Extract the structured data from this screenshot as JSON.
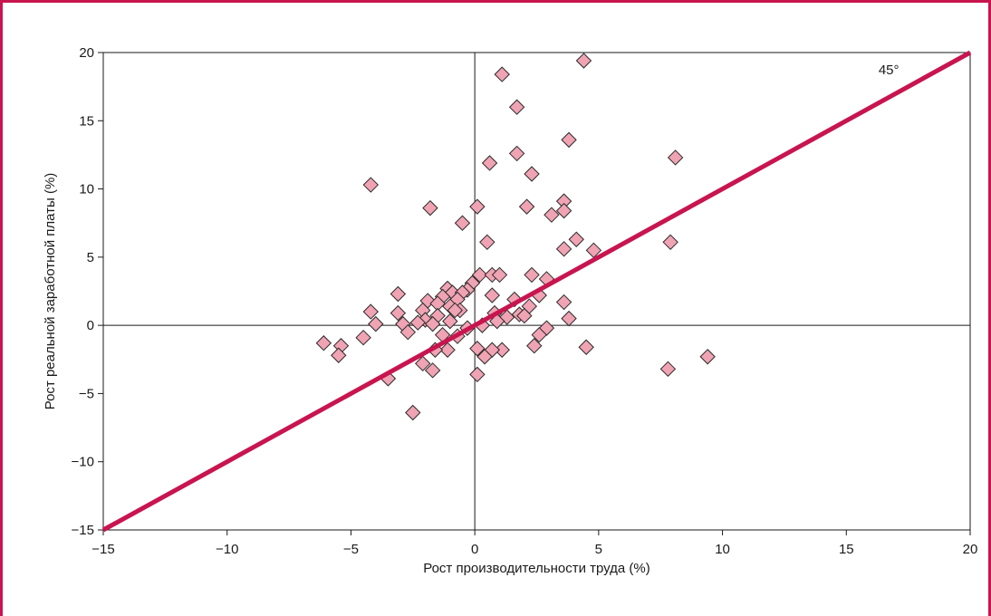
{
  "chart_data": {
    "type": "scatter",
    "xlabel": "Рост производительности труда (%)",
    "ylabel": "Рост реальной заработной платы (%)",
    "xlim": [
      -15,
      20
    ],
    "ylim": [
      -15,
      20
    ],
    "x_ticks": [
      -15,
      -10,
      -5,
      0,
      5,
      10,
      15,
      20
    ],
    "y_ticks": [
      -15,
      -10,
      -5,
      0,
      5,
      10,
      15,
      20
    ],
    "x_tick_labels": [
      "−15",
      "−10",
      "−5",
      "0",
      "5",
      "10",
      "15",
      "20"
    ],
    "y_tick_labels": [
      "−15",
      "−10",
      "−5",
      "0",
      "5",
      "10",
      "15",
      "20"
    ],
    "grid": false,
    "reference_lines": {
      "x": 0,
      "y": 0
    },
    "fit_line": {
      "from": [
        -15,
        -15
      ],
      "to": [
        20,
        20
      ],
      "color": "#c8154f",
      "label": "45°"
    },
    "marker": {
      "shape": "diamond",
      "fill": "#f0a3b3",
      "stroke": "#2a2a2a"
    },
    "frame_color": "#c8154f",
    "series": [
      {
        "points": [
          [
            4.4,
            19.4
          ],
          [
            1.1,
            18.4
          ],
          [
            1.7,
            16.0
          ],
          [
            3.8,
            13.6
          ],
          [
            1.7,
            12.6
          ],
          [
            0.6,
            11.9
          ],
          [
            8.1,
            12.3
          ],
          [
            2.3,
            11.1
          ],
          [
            -4.2,
            10.3
          ],
          [
            3.6,
            9.1
          ],
          [
            -1.8,
            8.6
          ],
          [
            0.1,
            8.7
          ],
          [
            2.1,
            8.7
          ],
          [
            3.6,
            8.4
          ],
          [
            3.1,
            8.1
          ],
          [
            -0.5,
            7.5
          ],
          [
            4.1,
            6.3
          ],
          [
            0.5,
            6.1
          ],
          [
            7.9,
            6.1
          ],
          [
            3.6,
            5.6
          ],
          [
            4.8,
            5.5
          ],
          [
            0.2,
            3.7
          ],
          [
            0.7,
            3.7
          ],
          [
            1.0,
            3.7
          ],
          [
            2.3,
            3.7
          ],
          [
            2.9,
            3.4
          ],
          [
            -0.1,
            3.1
          ],
          [
            -1.1,
            2.7
          ],
          [
            -0.3,
            2.6
          ],
          [
            -0.9,
            2.4
          ],
          [
            -0.5,
            2.4
          ],
          [
            -3.1,
            2.3
          ],
          [
            0.7,
            2.2
          ],
          [
            2.6,
            2.2
          ],
          [
            -1.3,
            2.1
          ],
          [
            -0.7,
            1.9
          ],
          [
            1.6,
            1.9
          ],
          [
            -1.9,
            1.8
          ],
          [
            3.6,
            1.7
          ],
          [
            -1.5,
            1.6
          ],
          [
            -1.0,
            1.4
          ],
          [
            2.2,
            1.4
          ],
          [
            -2.1,
            1.1
          ],
          [
            -0.6,
            1.1
          ],
          [
            -0.8,
            1.1
          ],
          [
            -4.2,
            1.0
          ],
          [
            -3.1,
            0.9
          ],
          [
            0.8,
            0.9
          ],
          [
            1.8,
            0.8
          ],
          [
            -1.5,
            0.7
          ],
          [
            2.0,
            0.7
          ],
          [
            3.8,
            0.5
          ],
          [
            1.3,
            0.6
          ],
          [
            -2.0,
            0.4
          ],
          [
            -1.0,
            0.3
          ],
          [
            0.9,
            0.3
          ],
          [
            -4.0,
            0.1
          ],
          [
            -2.3,
            0.2
          ],
          [
            -1.7,
            0.1
          ],
          [
            -2.9,
            0.1
          ],
          [
            0.3,
            0.0
          ],
          [
            2.9,
            -0.2
          ],
          [
            -0.3,
            -0.2
          ],
          [
            -2.7,
            -0.5
          ],
          [
            -1.3,
            -0.7
          ],
          [
            -0.7,
            -0.8
          ],
          [
            2.6,
            -0.7
          ],
          [
            -4.5,
            -0.9
          ],
          [
            -6.1,
            -1.3
          ],
          [
            -5.4,
            -1.5
          ],
          [
            0.1,
            -1.7
          ],
          [
            -1.1,
            -1.8
          ],
          [
            -1.6,
            -1.8
          ],
          [
            1.1,
            -1.8
          ],
          [
            0.7,
            -1.8
          ],
          [
            4.5,
            -1.6
          ],
          [
            2.4,
            -1.5
          ],
          [
            -5.5,
            -2.2
          ],
          [
            0.4,
            -2.3
          ],
          [
            9.4,
            -2.3
          ],
          [
            -2.1,
            -2.8
          ],
          [
            -1.7,
            -3.3
          ],
          [
            7.8,
            -3.2
          ],
          [
            0.1,
            -3.6
          ],
          [
            -3.5,
            -3.9
          ],
          [
            -2.5,
            -6.4
          ]
        ]
      }
    ]
  }
}
